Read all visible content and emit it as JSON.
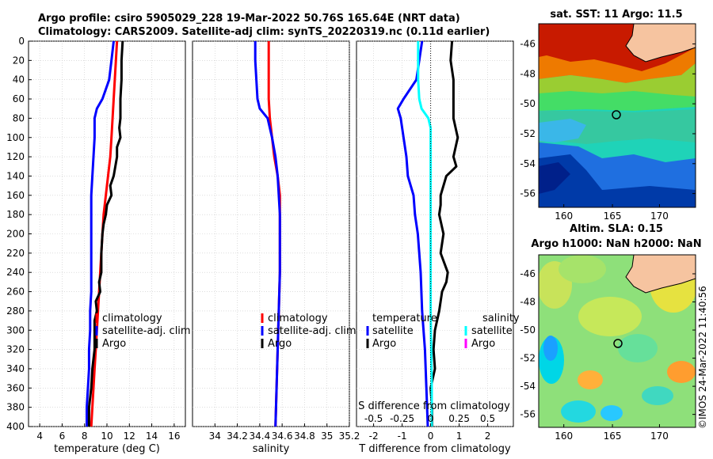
{
  "header": {
    "line1": "Argo profile: csiro 5905029_228 19-Mar-2022 50.76S 165.64E (NRT data)",
    "line2": "Climatology: CARS2009. Satellite-adj clim: synTS_20220319.nc (0.11d earlier)"
  },
  "sst_map": {
    "title": "sat. SST: 11 Argo: 11.5",
    "x_ticks": [
      "160",
      "165",
      "170"
    ],
    "y_ticks": [
      "-46",
      "-48",
      "-50",
      "-52",
      "-54",
      "-56"
    ]
  },
  "sla_map": {
    "title_line1": "Altim. SLA: 0.15",
    "title_line2": "Argo h1000: NaN h2000: NaN",
    "x_ticks": [
      "160",
      "165",
      "170"
    ],
    "y_ticks": [
      "-46",
      "-48",
      "-50",
      "-52",
      "-54",
      "-56"
    ]
  },
  "credit": "©IMOS 24-Mar-2022 11:40:56",
  "colors": {
    "climatology": "#ff0000",
    "satellite": "#0000ff",
    "argo": "#000000",
    "salinity_satellite": "#00ffff",
    "salinity_argo": "#ff00ff"
  },
  "chart_data": [
    {
      "type": "line",
      "xlabel": "temperature (deg C)",
      "ylabel": "",
      "xlim": [
        3,
        17
      ],
      "ylim": [
        400,
        0
      ],
      "x_ticks": [
        4,
        6,
        8,
        10,
        12,
        14,
        16
      ],
      "x_tick_labels": [
        "4",
        "6",
        "8",
        "10",
        "12",
        "14",
        "16"
      ],
      "y_ticks": [
        0,
        20,
        40,
        60,
        80,
        100,
        120,
        140,
        160,
        180,
        200,
        220,
        240,
        260,
        280,
        300,
        320,
        340,
        360,
        380,
        400
      ],
      "y_tick_labels": [
        "0",
        "20",
        "40",
        "60",
        "80",
        "100",
        "120",
        "140",
        "160",
        "180",
        "200",
        "220",
        "240",
        "260",
        "280",
        "300",
        "320",
        "340",
        "360",
        "380",
        "400"
      ],
      "legend": [
        "climatology",
        "satellite-adj. clim",
        "Argo"
      ],
      "series": [
        {
          "name": "climatology",
          "depth": [
            0,
            20,
            40,
            60,
            80,
            100,
            120,
            140,
            160,
            180,
            200,
            220,
            240,
            260,
            280,
            300,
            320,
            340,
            360,
            380,
            400
          ],
          "values": [
            10.9,
            10.8,
            10.7,
            10.6,
            10.5,
            10.4,
            10.3,
            10.1,
            9.9,
            9.7,
            9.6,
            9.5,
            9.4,
            9.3,
            9.2,
            9.1,
            9.0,
            8.9,
            8.8,
            8.7,
            8.6
          ]
        },
        {
          "name": "satellite-adj. clim",
          "depth": [
            0,
            20,
            40,
            60,
            70,
            80,
            100,
            120,
            140,
            160,
            180,
            200,
            220,
            240,
            260,
            280,
            300,
            320,
            340,
            360,
            380,
            400
          ],
          "values": [
            10.6,
            10.4,
            10.2,
            9.6,
            9.1,
            8.9,
            8.9,
            8.8,
            8.7,
            8.6,
            8.6,
            8.6,
            8.6,
            8.6,
            8.6,
            8.5,
            8.5,
            8.4,
            8.4,
            8.3,
            8.2,
            8.2
          ]
        },
        {
          "name": "Argo",
          "depth": [
            0,
            20,
            40,
            60,
            80,
            90,
            100,
            110,
            120,
            140,
            150,
            160,
            170,
            180,
            190,
            200,
            220,
            240,
            250,
            260,
            270,
            280,
            290,
            300,
            320,
            340,
            360,
            380,
            400
          ],
          "values": [
            11.4,
            11.3,
            11.3,
            11.2,
            11.2,
            11.1,
            11.2,
            10.9,
            10.9,
            10.6,
            10.3,
            10.4,
            10.0,
            9.9,
            9.7,
            9.6,
            9.5,
            9.5,
            9.3,
            9.4,
            9.0,
            9.1,
            8.9,
            8.9,
            8.9,
            8.7,
            8.6,
            8.4,
            8.4
          ]
        }
      ]
    },
    {
      "type": "line",
      "xlabel": "salinity",
      "ylabel": "",
      "xlim": [
        33.8,
        35.2
      ],
      "ylim": [
        400,
        0
      ],
      "x_ticks": [
        34,
        34.2,
        34.4,
        34.6,
        34.8,
        35,
        35.2
      ],
      "x_tick_labels": [
        "34",
        "34.2",
        "34.4",
        "34.6",
        "34.8",
        "35",
        "35.2"
      ],
      "legend": [
        "climatology",
        "satellite-adj. clim",
        "Argo"
      ],
      "series": [
        {
          "name": "climatology",
          "depth": [
            0,
            20,
            40,
            60,
            80,
            100,
            120,
            140,
            160,
            180,
            200,
            240,
            280,
            320,
            360,
            400
          ],
          "values": [
            34.48,
            34.48,
            34.48,
            34.48,
            34.49,
            34.51,
            34.53,
            34.56,
            34.58,
            34.58,
            34.58,
            34.58,
            34.57,
            34.56,
            34.55,
            34.54
          ]
        },
        {
          "name": "satellite-adj. clim",
          "depth": [
            0,
            20,
            40,
            60,
            70,
            80,
            100,
            120,
            140,
            160,
            180,
            200,
            240,
            280,
            320,
            360,
            400
          ],
          "values": [
            34.36,
            34.36,
            34.37,
            34.38,
            34.4,
            34.47,
            34.51,
            34.54,
            34.56,
            34.57,
            34.58,
            34.58,
            34.58,
            34.57,
            34.56,
            34.55,
            34.54
          ]
        }
      ]
    },
    {
      "type": "line",
      "xlabel": "T difference from climatology",
      "top_label": "S difference from climatology",
      "xlim": [
        -2.6,
        2.9
      ],
      "ylim": [
        400,
        0
      ],
      "x_ticks": [
        -2,
        -1,
        0,
        1,
        2
      ],
      "x_tick_labels": [
        "-2",
        "-1",
        "0",
        "1",
        "2"
      ],
      "s_ticks": [
        -0.5,
        -0.25,
        0,
        0.25,
        0.5
      ],
      "s_tick_labels": [
        "-0.5",
        "-0.25",
        "0",
        "0.25",
        "0.5"
      ],
      "legend_temperature_title": "temperature",
      "legend_salinity_title": "salinity",
      "legend_temperature": [
        "satellite",
        "Argo"
      ],
      "legend_salinity": [
        "satellite",
        "Argo"
      ],
      "series": [
        {
          "name": "temperature satellite",
          "depth": [
            0,
            20,
            40,
            60,
            70,
            80,
            100,
            120,
            140,
            160,
            180,
            200,
            240,
            280,
            320,
            360,
            400
          ],
          "values": [
            -0.3,
            -0.4,
            -0.5,
            -0.95,
            -1.15,
            -1.05,
            -0.95,
            -0.85,
            -0.8,
            -0.6,
            -0.55,
            -0.45,
            -0.35,
            -0.3,
            -0.2,
            -0.15,
            -0.1
          ]
        },
        {
          "name": "temperature Argo",
          "depth": [
            0,
            20,
            40,
            60,
            80,
            100,
            120,
            130,
            140,
            160,
            170,
            180,
            200,
            220,
            240,
            250,
            260,
            270,
            280,
            300,
            320,
            340,
            360,
            380,
            400
          ],
          "values": [
            0.75,
            0.7,
            0.8,
            0.8,
            0.8,
            0.95,
            0.8,
            0.9,
            0.55,
            0.35,
            0.35,
            0.3,
            0.45,
            0.35,
            0.6,
            0.55,
            0.4,
            0.35,
            0.3,
            0.15,
            0.1,
            0.15,
            0.0,
            0.05,
            0.05
          ]
        },
        {
          "name": "salinity satellite",
          "depth": [
            0,
            20,
            40,
            60,
            70,
            80,
            90,
            100,
            140,
            200,
            280,
            360,
            400
          ],
          "values": [
            -0.11,
            -0.11,
            -0.11,
            -0.1,
            -0.08,
            -0.02,
            0.0,
            0.0,
            0.0,
            0.0,
            0.0,
            0.01,
            0.01
          ]
        }
      ]
    }
  ]
}
